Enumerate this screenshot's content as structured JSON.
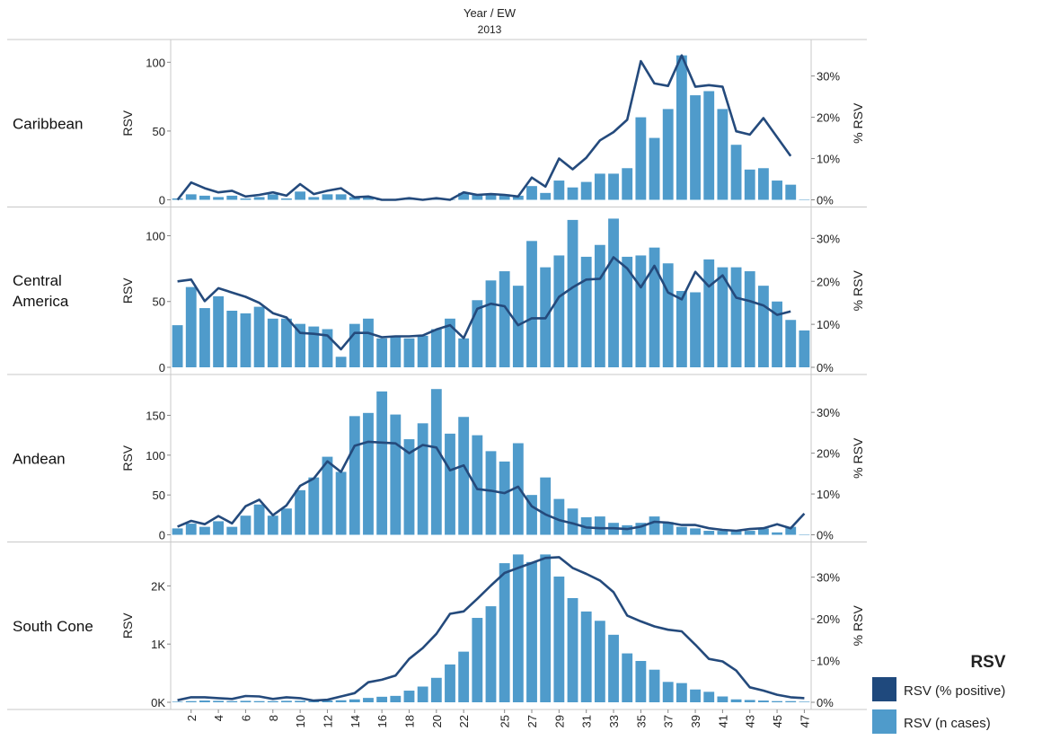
{
  "header": {
    "title": "Year  /  EW",
    "year": "2013"
  },
  "legend": {
    "title": "RSV",
    "items": [
      {
        "label": "RSV (% positive)",
        "color": "#1f497d",
        "icon": "line-swatch"
      },
      {
        "label": "RSV (n cases)",
        "color": "#4f9bcb",
        "icon": "bar-swatch"
      }
    ]
  },
  "colors": {
    "bar": "#4f9bcb",
    "line": "#244a7c",
    "grid": "#c8c8c8"
  },
  "chart_data": [
    {
      "type": "bar",
      "region": "Caribbean",
      "ylabel": "RSV",
      "y2label": "% RSV",
      "x": [
        1,
        2,
        3,
        4,
        5,
        6,
        7,
        8,
        9,
        10,
        11,
        12,
        13,
        14,
        15,
        16,
        17,
        18,
        19,
        20,
        21,
        22,
        23,
        24,
        25,
        26,
        27,
        28,
        29,
        30,
        31,
        32,
        33,
        34,
        35,
        36,
        37,
        38,
        39,
        40,
        41,
        42,
        43,
        44,
        45,
        46,
        47
      ],
      "series": [
        {
          "name": "RSV (n cases)",
          "axis": "left",
          "values": [
            1,
            4,
            3,
            2,
            3,
            1,
            2,
            4,
            1,
            6,
            2,
            4,
            4,
            2,
            2,
            0,
            0,
            1,
            0,
            1,
            0,
            5,
            4,
            4,
            4,
            3,
            10,
            5,
            14,
            9,
            13,
            19,
            19,
            23,
            60,
            45,
            66,
            105,
            76,
            79,
            66,
            40,
            22,
            23,
            14,
            11,
            0
          ]
        },
        {
          "name": "RSV (% positive)",
          "axis": "right",
          "values": [
            0,
            4.2,
            2.8,
            1.8,
            2.2,
            0.8,
            1.2,
            1.8,
            1,
            3.8,
            1.4,
            2.2,
            2.8,
            0.6,
            0.8,
            0,
            0,
            0.4,
            0,
            0.4,
            0,
            1.8,
            1.2,
            1.4,
            1.2,
            0.8,
            5.4,
            3.2,
            10,
            7.4,
            10.2,
            14.4,
            16.4,
            19.4,
            33.6,
            28.2,
            27.6,
            35,
            27.4,
            27.8,
            27.4,
            16.6,
            15.8,
            19.8,
            15.2,
            10.6,
            null
          ]
        }
      ],
      "ylim": [
        0,
        110
      ],
      "yticks": [
        0,
        50,
        100
      ],
      "ytick_labels": [
        "0",
        "50",
        "100"
      ],
      "y2lim": [
        0,
        36.67
      ],
      "y2ticks": [
        0,
        10,
        20,
        30
      ],
      "y2tick_labels": [
        "0%",
        "10%",
        "20%",
        "30%"
      ]
    },
    {
      "type": "bar",
      "region": "Central America",
      "ylabel": "RSV",
      "y2label": "% RSV",
      "x": [
        1,
        2,
        3,
        4,
        5,
        6,
        7,
        8,
        9,
        10,
        11,
        12,
        13,
        14,
        15,
        16,
        17,
        18,
        19,
        20,
        21,
        22,
        23,
        24,
        25,
        26,
        27,
        28,
        29,
        30,
        31,
        32,
        33,
        34,
        35,
        36,
        37,
        38,
        39,
        40,
        41,
        42,
        43,
        44,
        45,
        46,
        47
      ],
      "series": [
        {
          "name": "RSV (n cases)",
          "axis": "left",
          "values": [
            32,
            61,
            45,
            54,
            43,
            41,
            46,
            37,
            37,
            33,
            31,
            29,
            8,
            33,
            37,
            22,
            23,
            22,
            24,
            29,
            37,
            22,
            51,
            66,
            73,
            62,
            96,
            76,
            85,
            112,
            84,
            93,
            113,
            84,
            85,
            91,
            79,
            58,
            57,
            82,
            76,
            76,
            73,
            62,
            50,
            36,
            28
          ]
        },
        {
          "name": "RSV (% positive)",
          "axis": "right",
          "values": [
            20,
            20.4,
            15.4,
            18.4,
            17.4,
            16.4,
            15,
            12.6,
            11.6,
            8,
            7.8,
            7.4,
            4.2,
            8,
            8,
            7,
            7.2,
            7.2,
            7.4,
            8.8,
            9.8,
            6.8,
            13.6,
            14.8,
            14.2,
            9.8,
            11.4,
            11.4,
            16.4,
            18.6,
            20.4,
            20.6,
            25.6,
            23,
            18.6,
            23.6,
            17.4,
            15.8,
            22.2,
            18.8,
            21.4,
            16.2,
            15.4,
            14.4,
            12.2,
            13,
            null
          ]
        }
      ],
      "ylim": [
        0,
        115
      ],
      "yticks": [
        0,
        50,
        100
      ],
      "ytick_labels": [
        "0",
        "50",
        "100"
      ],
      "y2lim": [
        0,
        35.2
      ],
      "y2ticks": [
        0,
        10,
        20,
        30
      ],
      "y2tick_labels": [
        "0%",
        "10%",
        "20%",
        "30%"
      ]
    },
    {
      "type": "bar",
      "region": "Andean",
      "ylabel": "RSV",
      "y2label": "% RSV",
      "x": [
        1,
        2,
        3,
        4,
        5,
        6,
        7,
        8,
        9,
        10,
        11,
        12,
        13,
        14,
        15,
        16,
        17,
        18,
        19,
        20,
        21,
        22,
        23,
        24,
        25,
        26,
        27,
        28,
        29,
        30,
        31,
        32,
        33,
        34,
        35,
        36,
        37,
        38,
        39,
        40,
        41,
        42,
        43,
        44,
        45,
        46,
        47
      ],
      "series": [
        {
          "name": "RSV (n cases)",
          "axis": "left",
          "values": [
            8,
            14,
            10,
            17,
            10,
            24,
            38,
            24,
            33,
            56,
            72,
            98,
            79,
            149,
            153,
            180,
            151,
            120,
            140,
            183,
            127,
            148,
            125,
            105,
            92,
            115,
            50,
            72,
            45,
            33,
            22,
            23,
            15,
            12,
            15,
            23,
            16,
            10,
            8,
            5,
            5,
            5,
            5,
            8,
            3,
            10,
            0
          ]
        },
        {
          "name": "RSV (% positive)",
          "axis": "right",
          "values": [
            2,
            3.4,
            2.6,
            4.6,
            2.8,
            7,
            8.6,
            4.8,
            7.2,
            12,
            13.8,
            18,
            15.4,
            21.8,
            22.8,
            22.6,
            22.4,
            20,
            22,
            21.4,
            15.8,
            17,
            11.2,
            10.8,
            10.2,
            11.8,
            7,
            5,
            3.6,
            2.8,
            1.8,
            1.6,
            1.6,
            1.4,
            2,
            3.2,
            3,
            2.4,
            2.4,
            1.6,
            1.2,
            1,
            1.4,
            1.6,
            2.6,
            1.6,
            5.2
          ]
        }
      ],
      "ylim": [
        0,
        190
      ],
      "yticks": [
        0,
        50,
        100,
        150
      ],
      "ytick_labels": [
        "0",
        "50",
        "100",
        "150"
      ],
      "y2lim": [
        0,
        37.08
      ],
      "y2ticks": [
        0,
        10,
        20,
        30
      ],
      "y2tick_labels": [
        "0%",
        "10%",
        "20%",
        "30%"
      ]
    },
    {
      "type": "bar",
      "region": "South Cone",
      "ylabel": "RSV",
      "y2label": "% RSV",
      "x": [
        1,
        2,
        3,
        4,
        5,
        6,
        7,
        8,
        9,
        10,
        11,
        12,
        13,
        14,
        15,
        16,
        17,
        18,
        19,
        20,
        21,
        22,
        23,
        24,
        25,
        26,
        27,
        28,
        29,
        30,
        31,
        32,
        33,
        34,
        35,
        36,
        37,
        38,
        39,
        40,
        41,
        42,
        43,
        44,
        45,
        46,
        47
      ],
      "series": [
        {
          "name": "RSV (n cases)",
          "axis": "left",
          "values": [
            10,
            20,
            30,
            25,
            20,
            25,
            20,
            20,
            25,
            25,
            20,
            30,
            35,
            50,
            75,
            95,
            110,
            200,
            270,
            420,
            650,
            870,
            1450,
            1650,
            2390,
            2540,
            2410,
            2540,
            2160,
            1790,
            1560,
            1400,
            1160,
            840,
            710,
            560,
            350,
            330,
            220,
            180,
            100,
            50,
            40,
            30,
            20,
            20,
            10
          ]
        },
        {
          "name": "RSV (% positive)",
          "axis": "right",
          "values": [
            0.5,
            1.2,
            1.2,
            1,
            0.8,
            1.5,
            1.4,
            0.8,
            1.2,
            1,
            0.4,
            0.6,
            1.4,
            2.2,
            4.8,
            5.4,
            6.4,
            10.4,
            13,
            16.4,
            21.2,
            21.8,
            24.8,
            28,
            31,
            32.2,
            33.4,
            34.6,
            34.8,
            32.2,
            30.8,
            29.2,
            26.4,
            20.8,
            19.4,
            18.2,
            17.4,
            17,
            13.8,
            10.4,
            9.8,
            7.6,
            3.6,
            2.8,
            1.8,
            1.2,
            1
          ]
        }
      ],
      "ylim": [
        0,
        2600
      ],
      "yticks": [
        0,
        1000,
        2000
      ],
      "ytick_labels": [
        "0K",
        "1K",
        "2K"
      ],
      "y2lim": [
        0,
        36.28
      ],
      "y2ticks": [
        0,
        10,
        20,
        30
      ],
      "y2tick_labels": [
        "0%",
        "10%",
        "20%",
        "30%"
      ]
    }
  ],
  "x_ticks": [
    2,
    4,
    6,
    8,
    10,
    12,
    14,
    16,
    18,
    20,
    22,
    25,
    27,
    29,
    31,
    33,
    35,
    37,
    39,
    41,
    43,
    45,
    47
  ],
  "x_tick_labels": [
    "2",
    "4",
    "6",
    "8",
    "10",
    "12",
    "14",
    "16",
    "18",
    "20",
    "22",
    "25",
    "27",
    "29",
    "31",
    "33",
    "35",
    "37",
    "39",
    "41",
    "43",
    "45",
    "47"
  ]
}
